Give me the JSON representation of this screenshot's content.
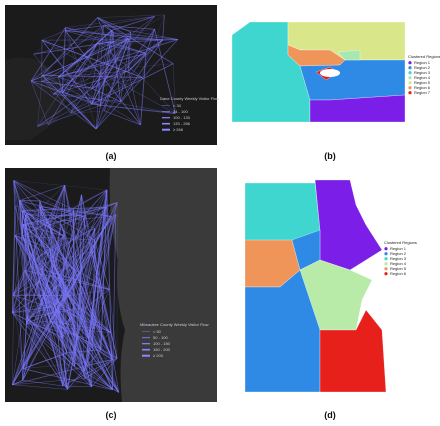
{
  "panel_a": {
    "label": "(a)",
    "legend_title": "Dane County Weekly Visitor Flow",
    "legend_items": [
      "< 34",
      "34 - 100",
      "100 - 133",
      "133 - 266",
      "≥ 266"
    ]
  },
  "panel_b": {
    "label": "(b)",
    "legend_title": "Clustered Regions",
    "regions": [
      {
        "name": "Region 1",
        "color": "#7b1fe8"
      },
      {
        "name": "Region 2",
        "color": "#2f8ae6"
      },
      {
        "name": "Region 3",
        "color": "#3fd6d0"
      },
      {
        "name": "Region 4",
        "color": "#a8e8b0"
      },
      {
        "name": "Region 5",
        "color": "#d9e68a"
      },
      {
        "name": "Region 6",
        "color": "#f0955a"
      },
      {
        "name": "Region 7",
        "color": "#e8201c"
      }
    ]
  },
  "panel_c": {
    "label": "(c)",
    "legend_title": "Milwaukee County Weekly Visitor Flow",
    "legend_items": [
      "< 50",
      "50 - 100",
      "100 - 150",
      "150 - 200",
      "≥ 200"
    ]
  },
  "panel_d": {
    "label": "(d)",
    "legend_title": "Clustered Regions",
    "regions": [
      {
        "name": "Region 1",
        "color": "#7b1fe8"
      },
      {
        "name": "Region 2",
        "color": "#2f8ae6"
      },
      {
        "name": "Region 3",
        "color": "#3fd6d0"
      },
      {
        "name": "Region 4",
        "color": "#b8eaa8"
      },
      {
        "name": "Region 5",
        "color": "#f0955a"
      },
      {
        "name": "Region 6",
        "color": "#e8201c"
      }
    ]
  }
}
